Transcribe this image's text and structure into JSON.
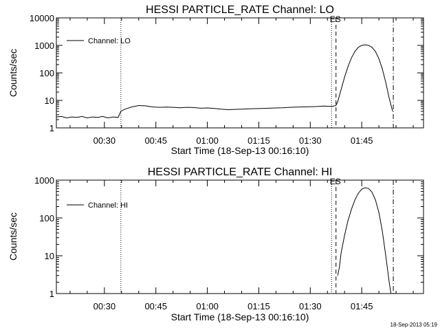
{
  "chart_data": [
    {
      "type": "line",
      "title": "HESSI PARTICLE_RATE Channel: LO",
      "xlabel": "Start Time (18-Sep-13 00:16:10)",
      "ylabel": "Counts/sec",
      "yscale": "log",
      "x_unit": "minutes after 00:16:10 (18-Sep-13)",
      "xlim": [
        0,
        107
      ],
      "ylim": [
        1,
        10000
      ],
      "x_ticks": [
        14,
        29,
        44,
        59,
        74,
        89
      ],
      "x_tick_labels": [
        "00:30",
        "00:45",
        "01:00",
        "01:15",
        "01:30",
        "01:45"
      ],
      "y_ticks": [
        1,
        10,
        100,
        1000,
        10000
      ],
      "y_tick_labels": [
        "1",
        "10",
        "100",
        "1000",
        "10000"
      ],
      "grid": false,
      "legend": {
        "position": "top-left",
        "entries": [
          "Channel: LO"
        ]
      },
      "markers": [
        {
          "x": 18.8,
          "style": "dotted"
        },
        {
          "x": 80.2,
          "style": "dotted"
        },
        {
          "x": 81.5,
          "style": "dashed",
          "label": "ES"
        },
        {
          "x": 98.2,
          "style": "dashdot"
        }
      ],
      "series": [
        {
          "name": "Channel: LO",
          "x": [
            0,
            1.5,
            3,
            4.5,
            6,
            7.5,
            9,
            10.5,
            12,
            13.5,
            15,
            16.5,
            18,
            18.8,
            20,
            22,
            24,
            26,
            28,
            30,
            32,
            34,
            36,
            38,
            40,
            42,
            44,
            46,
            48,
            50,
            52,
            54,
            56,
            58,
            60,
            62,
            64,
            66,
            68,
            70,
            72,
            74,
            76,
            78,
            80.2,
            81.5,
            82,
            83,
            84,
            85,
            86,
            87,
            88,
            89,
            90,
            91,
            92,
            93,
            94,
            95,
            96,
            97,
            98
          ],
          "values": [
            2.5,
            2.6,
            2.3,
            2.5,
            2.4,
            2.6,
            2.3,
            2.5,
            2.4,
            2.6,
            2.3,
            2.5,
            2.4,
            4,
            4.8,
            5.8,
            6.5,
            6.3,
            5.8,
            5.6,
            5.7,
            5.6,
            5.4,
            5.6,
            5.5,
            5.2,
            5.3,
            5.1,
            4.8,
            4.6,
            4.7,
            4.8,
            4.9,
            5,
            5.1,
            5.2,
            5.3,
            5.4,
            5.6,
            5.7,
            5.8,
            5.9,
            6,
            6.2,
            6,
            6.5,
            9,
            25,
            70,
            170,
            350,
            600,
            850,
            1000,
            1050,
            1000,
            850,
            600,
            330,
            140,
            45,
            12,
            4
          ]
        }
      ]
    },
    {
      "type": "line",
      "title": "HESSI PARTICLE_RATE Channel: HI",
      "xlabel": "Start Time (18-Sep-13 00:16:10)",
      "ylabel": "Counts/sec",
      "yscale": "log",
      "x_unit": "minutes after 00:16:10 (18-Sep-13)",
      "xlim": [
        0,
        107
      ],
      "ylim": [
        1,
        1000
      ],
      "x_ticks": [
        14,
        29,
        44,
        59,
        74,
        89
      ],
      "x_tick_labels": [
        "00:30",
        "00:45",
        "01:00",
        "01:15",
        "01:30",
        "01:45"
      ],
      "y_ticks": [
        1,
        10,
        100,
        1000
      ],
      "y_tick_labels": [
        "1",
        "10",
        "100",
        "1000"
      ],
      "grid": false,
      "legend": {
        "position": "top-left",
        "entries": [
          "Channel: HI"
        ]
      },
      "markers": [
        {
          "x": 18.8,
          "style": "dotted"
        },
        {
          "x": 80.2,
          "style": "dotted"
        },
        {
          "x": 81.5,
          "style": "dashed",
          "label": "ES"
        },
        {
          "x": 98.2,
          "style": "dashdot"
        }
      ],
      "series": [
        {
          "name": "Channel: HI",
          "x": [
            82,
            82.5,
            83,
            84,
            85,
            86,
            87,
            88,
            89,
            90,
            91,
            92,
            93,
            94,
            95,
            96,
            97,
            97.5
          ],
          "values": [
            3,
            5,
            12,
            35,
            85,
            170,
            300,
            450,
            580,
            630,
            600,
            480,
            300,
            140,
            45,
            10,
            2,
            1
          ]
        }
      ]
    }
  ],
  "timestamp": "18-Sep-2013 05:19"
}
